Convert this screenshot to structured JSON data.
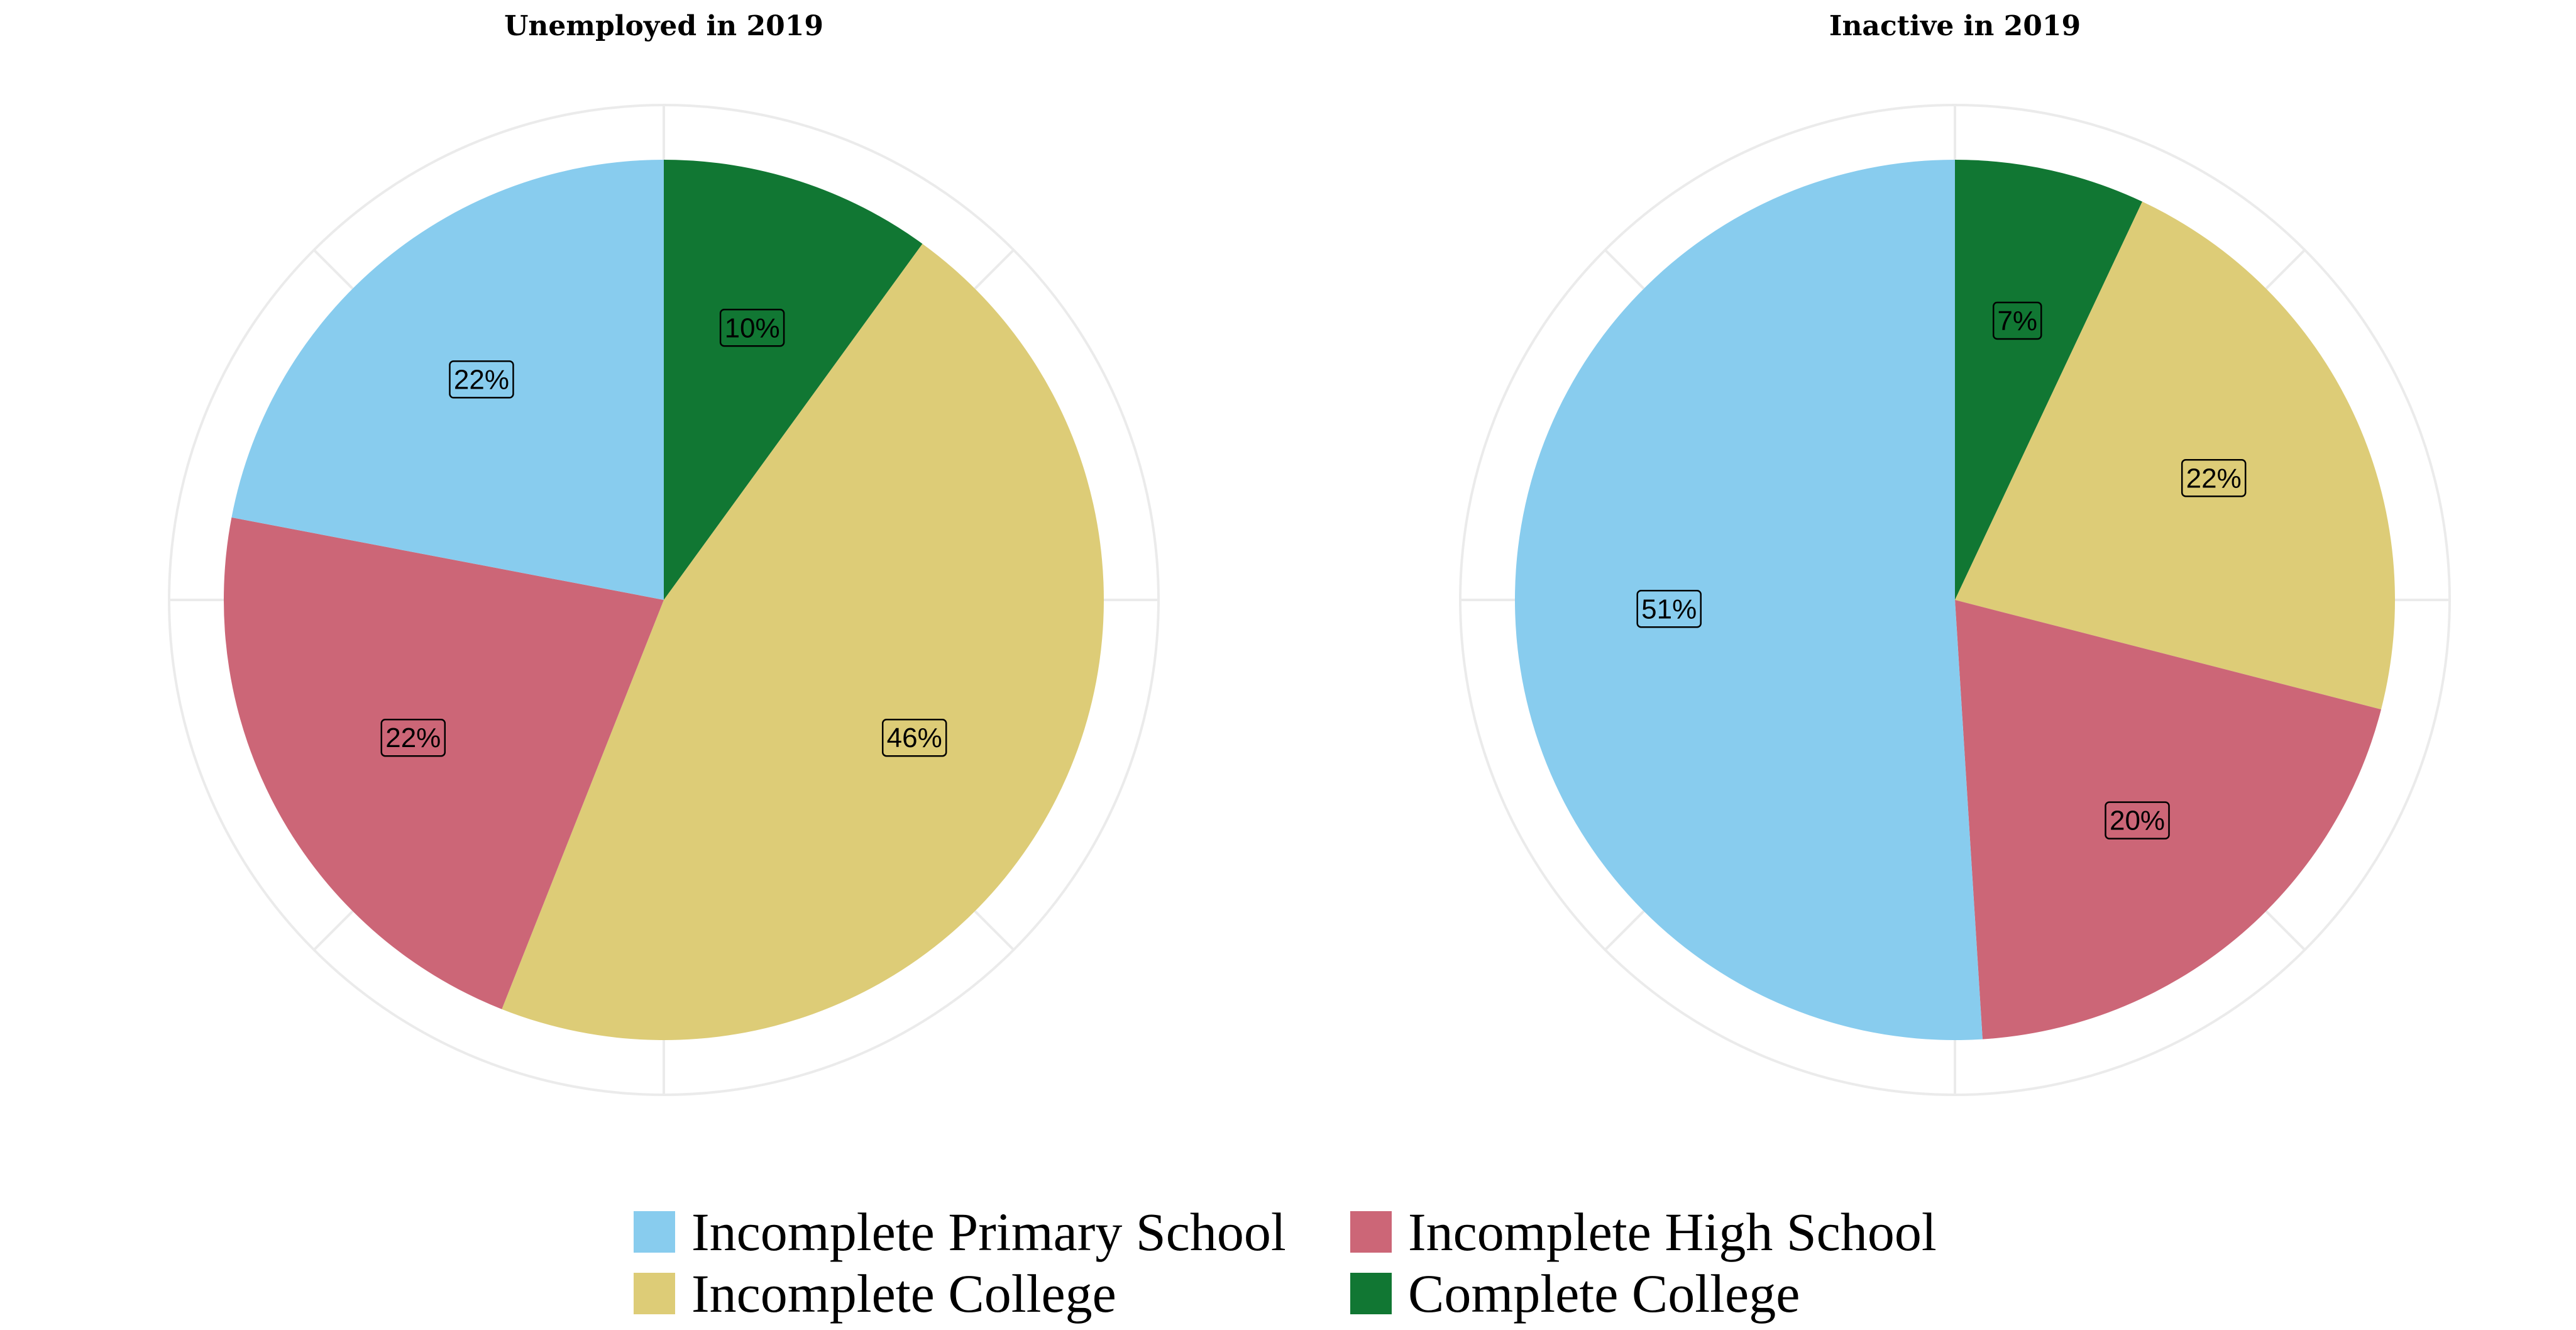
{
  "legend": [
    {
      "label": "Incomplete Primary School",
      "color": "#88CCEE"
    },
    {
      "label": "Incomplete High School",
      "color": "#CC6677"
    },
    {
      "label": "Incomplete College",
      "color": "#DDCC77"
    },
    {
      "label": "Complete College",
      "color": "#117733"
    }
  ],
  "chart_data": [
    {
      "type": "pie",
      "title": "Unemployed in 2019",
      "direction": "clockwise from top",
      "slices": [
        {
          "name": "Complete College",
          "value": 10,
          "label": "10%",
          "color": "#117733"
        },
        {
          "name": "Incomplete College",
          "value": 46,
          "label": "46%",
          "color": "#DDCC77"
        },
        {
          "name": "Incomplete High School",
          "value": 22,
          "label": "22%",
          "color": "#CC6677"
        },
        {
          "name": "Incomplete Primary School",
          "value": 22,
          "label": "22%",
          "color": "#88CCEE"
        }
      ]
    },
    {
      "type": "pie",
      "title": "Inactive in 2019",
      "direction": "clockwise from top",
      "slices": [
        {
          "name": "Complete College",
          "value": 7,
          "label": "7%",
          "color": "#117733"
        },
        {
          "name": "Incomplete College",
          "value": 22,
          "label": "22%",
          "color": "#DDCC77"
        },
        {
          "name": "Incomplete High School",
          "value": 20,
          "label": "20%",
          "color": "#CC6677"
        },
        {
          "name": "Incomplete Primary School",
          "value": 51,
          "label": "51%",
          "color": "#88CCEE"
        }
      ]
    }
  ]
}
